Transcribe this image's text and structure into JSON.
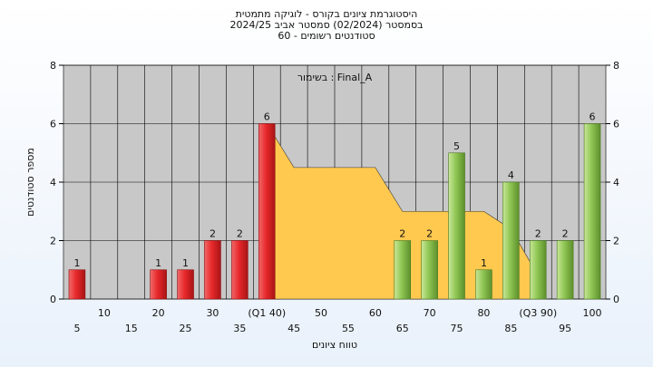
{
  "chart_data": {
    "type": "bar",
    "title_lines": [
      "היסטוגרמת ציונים בקורס - לוגיקה מתמטית",
      "בסמסטר  (02/2024)  סמסטר אביב 2024/25",
      "60 - סטודנטים רשומים"
    ],
    "xlabel": "טווח ציונים",
    "ylabel": "מספר סטודנטים",
    "annotation": "בשימור : Final_A",
    "ylim": [
      0,
      8
    ],
    "yticks": [
      0,
      2,
      4,
      6,
      8
    ],
    "grid": true,
    "categories": [
      "5",
      "10",
      "15",
      "20",
      "25",
      "30",
      "35",
      "(Q1 40)",
      "45",
      "50",
      "55",
      "60",
      "65",
      "70",
      "75",
      "80",
      "85",
      "(Q3 90)",
      "95",
      "100"
    ],
    "values": [
      1,
      0,
      0,
      1,
      1,
      2,
      2,
      6,
      0,
      0,
      0,
      0,
      2,
      2,
      5,
      1,
      4,
      2,
      2,
      6
    ],
    "bar_colors": [
      "red",
      "red",
      "red",
      "red",
      "red",
      "red",
      "red",
      "red",
      "none",
      "none",
      "none",
      "none",
      "green",
      "green",
      "green",
      "green",
      "green",
      "green",
      "green",
      "green"
    ],
    "iqr_area": {
      "color": "#ffc94f",
      "from": "(Q1 40)",
      "to": "(Q3 90)",
      "values": [
        6,
        4.5,
        4.5,
        4.5,
        4.5,
        3,
        3,
        3,
        3,
        2.4,
        0.8
      ]
    },
    "colors": {
      "red": "#e8282b",
      "green": "#8fc653",
      "plot_bg": "#c8c8c8",
      "grid": "#000000"
    }
  }
}
